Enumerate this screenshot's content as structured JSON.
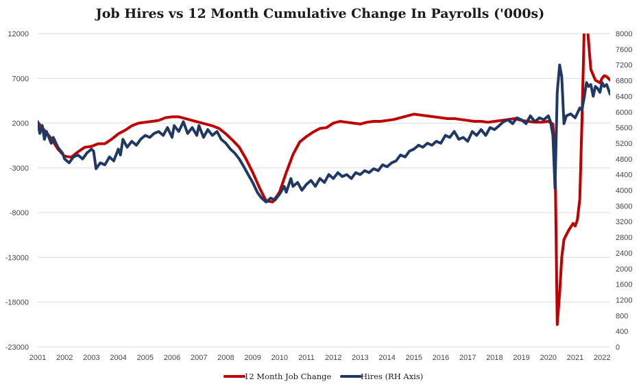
{
  "chart_data": {
    "type": "line",
    "title": "Job Hires vs 12 Month Cumulative Change In Payrolls ('000s)",
    "xlabel": "",
    "ylabel": "",
    "x_ticks": [
      "2001",
      "2002",
      "2003",
      "2004",
      "2005",
      "2006",
      "2007",
      "2008",
      "2009",
      "2010",
      "2011",
      "2012",
      "2013",
      "2014",
      "2015",
      "2016",
      "2017",
      "2018",
      "2019",
      "2020",
      "2021",
      "2022"
    ],
    "xlim": [
      2001.0,
      2022.3
    ],
    "left_axis": {
      "ticks": [
        "12000",
        "7000",
        "2000",
        "-3000",
        "-8000",
        "-13000",
        "-18000",
        "-23000"
      ],
      "ylim": [
        -23000,
        12000
      ]
    },
    "right_axis": {
      "ticks": [
        "8000",
        "7600",
        "7200",
        "6800",
        "6400",
        "6000",
        "5600",
        "5200",
        "4800",
        "4400",
        "4000",
        "3600",
        "3200",
        "2800",
        "2400",
        "2000",
        "1600",
        "1200",
        "800",
        "400",
        "0"
      ],
      "ylim": [
        0,
        8000
      ]
    },
    "grid": true,
    "legend_position": "bottom",
    "series": [
      {
        "name": "12 Month Job Change",
        "axis": "left",
        "color": "#c00000",
        "points": [
          [
            2001.0,
            2100
          ],
          [
            2001.25,
            1200
          ],
          [
            2001.5,
            300
          ],
          [
            2001.75,
            -900
          ],
          [
            2002.0,
            -1700
          ],
          [
            2002.25,
            -1800
          ],
          [
            2002.5,
            -1200
          ],
          [
            2002.75,
            -700
          ],
          [
            2003.0,
            -600
          ],
          [
            2003.25,
            -300
          ],
          [
            2003.5,
            -300
          ],
          [
            2003.75,
            200
          ],
          [
            2004.0,
            800
          ],
          [
            2004.25,
            1200
          ],
          [
            2004.5,
            1700
          ],
          [
            2004.75,
            2000
          ],
          [
            2005.0,
            2100
          ],
          [
            2005.25,
            2200
          ],
          [
            2005.5,
            2300
          ],
          [
            2005.75,
            2600
          ],
          [
            2006.0,
            2700
          ],
          [
            2006.25,
            2700
          ],
          [
            2006.5,
            2500
          ],
          [
            2006.75,
            2300
          ],
          [
            2007.0,
            2100
          ],
          [
            2007.5,
            1700
          ],
          [
            2007.75,
            1400
          ],
          [
            2008.0,
            800
          ],
          [
            2008.25,
            100
          ],
          [
            2008.5,
            -700
          ],
          [
            2008.75,
            -2000
          ],
          [
            2009.0,
            -3500
          ],
          [
            2009.25,
            -5200
          ],
          [
            2009.5,
            -6700
          ],
          [
            2009.75,
            -6800
          ],
          [
            2010.0,
            -5700
          ],
          [
            2010.25,
            -3500
          ],
          [
            2010.5,
            -1500
          ],
          [
            2010.75,
            -100
          ],
          [
            2011.0,
            500
          ],
          [
            2011.25,
            1000
          ],
          [
            2011.5,
            1400
          ],
          [
            2011.75,
            1500
          ],
          [
            2012.0,
            2000
          ],
          [
            2012.25,
            2200
          ],
          [
            2012.5,
            2100
          ],
          [
            2012.75,
            2000
          ],
          [
            2013.0,
            1900
          ],
          [
            2013.25,
            2100
          ],
          [
            2013.5,
            2200
          ],
          [
            2013.75,
            2200
          ],
          [
            2014.0,
            2300
          ],
          [
            2014.25,
            2400
          ],
          [
            2014.5,
            2600
          ],
          [
            2014.75,
            2800
          ],
          [
            2015.0,
            3000
          ],
          [
            2015.25,
            2900
          ],
          [
            2015.5,
            2800
          ],
          [
            2015.75,
            2700
          ],
          [
            2016.0,
            2600
          ],
          [
            2016.25,
            2500
          ],
          [
            2016.5,
            2500
          ],
          [
            2016.75,
            2400
          ],
          [
            2017.0,
            2300
          ],
          [
            2017.25,
            2200
          ],
          [
            2017.5,
            2200
          ],
          [
            2017.75,
            2100
          ],
          [
            2018.0,
            2200
          ],
          [
            2018.25,
            2300
          ],
          [
            2018.5,
            2400
          ],
          [
            2018.75,
            2500
          ],
          [
            2019.0,
            2300
          ],
          [
            2019.25,
            2200
          ],
          [
            2019.5,
            2100
          ],
          [
            2019.75,
            2100
          ],
          [
            2020.0,
            2200
          ],
          [
            2020.17,
            1900
          ],
          [
            2020.25,
            -1500
          ],
          [
            2020.33,
            -20500
          ],
          [
            2020.42,
            -17000
          ],
          [
            2020.5,
            -13000
          ],
          [
            2020.58,
            -11000
          ],
          [
            2020.75,
            -10000
          ],
          [
            2020.92,
            -9200
          ],
          [
            2021.0,
            -9500
          ],
          [
            2021.08,
            -8800
          ],
          [
            2021.17,
            -6500
          ],
          [
            2021.25,
            2000
          ],
          [
            2021.33,
            12000
          ],
          [
            2021.42,
            14000
          ],
          [
            2021.5,
            11000
          ],
          [
            2021.58,
            8000
          ],
          [
            2021.75,
            6800
          ],
          [
            2021.92,
            6500
          ],
          [
            2022.0,
            7000
          ],
          [
            2022.08,
            7300
          ],
          [
            2022.17,
            7200
          ],
          [
            2022.3,
            6800
          ]
        ]
      },
      {
        "name": "Hires (RH Axis)",
        "axis": "right",
        "color": "#1f3864",
        "points": [
          [
            2001.0,
            5750
          ],
          [
            2001.08,
            5450
          ],
          [
            2001.17,
            5650
          ],
          [
            2001.25,
            5300
          ],
          [
            2001.33,
            5500
          ],
          [
            2001.5,
            5200
          ],
          [
            2001.58,
            5350
          ],
          [
            2001.75,
            5100
          ],
          [
            2001.92,
            4950
          ],
          [
            2002.0,
            4800
          ],
          [
            2002.17,
            4700
          ],
          [
            2002.33,
            4850
          ],
          [
            2002.5,
            4900
          ],
          [
            2002.67,
            4800
          ],
          [
            2002.83,
            4950
          ],
          [
            2003.0,
            5050
          ],
          [
            2003.08,
            5000
          ],
          [
            2003.17,
            4550
          ],
          [
            2003.33,
            4700
          ],
          [
            2003.5,
            4650
          ],
          [
            2003.67,
            4850
          ],
          [
            2003.83,
            4750
          ],
          [
            2004.0,
            5050
          ],
          [
            2004.08,
            4900
          ],
          [
            2004.17,
            5300
          ],
          [
            2004.33,
            5100
          ],
          [
            2004.5,
            5250
          ],
          [
            2004.67,
            5150
          ],
          [
            2004.83,
            5300
          ],
          [
            2005.0,
            5400
          ],
          [
            2005.17,
            5350
          ],
          [
            2005.33,
            5450
          ],
          [
            2005.5,
            5500
          ],
          [
            2005.67,
            5400
          ],
          [
            2005.83,
            5600
          ],
          [
            2006.0,
            5350
          ],
          [
            2006.08,
            5650
          ],
          [
            2006.25,
            5500
          ],
          [
            2006.42,
            5750
          ],
          [
            2006.58,
            5450
          ],
          [
            2006.75,
            5600
          ],
          [
            2006.92,
            5400
          ],
          [
            2007.0,
            5650
          ],
          [
            2007.17,
            5350
          ],
          [
            2007.33,
            5550
          ],
          [
            2007.5,
            5400
          ],
          [
            2007.67,
            5500
          ],
          [
            2007.83,
            5300
          ],
          [
            2008.0,
            5200
          ],
          [
            2008.17,
            5050
          ],
          [
            2008.33,
            4950
          ],
          [
            2008.5,
            4800
          ],
          [
            2008.67,
            4600
          ],
          [
            2008.83,
            4400
          ],
          [
            2009.0,
            4200
          ],
          [
            2009.17,
            3950
          ],
          [
            2009.33,
            3800
          ],
          [
            2009.5,
            3700
          ],
          [
            2009.67,
            3800
          ],
          [
            2009.83,
            3750
          ],
          [
            2010.0,
            3900
          ],
          [
            2010.17,
            4100
          ],
          [
            2010.25,
            3950
          ],
          [
            2010.42,
            4300
          ],
          [
            2010.5,
            4100
          ],
          [
            2010.67,
            4200
          ],
          [
            2010.83,
            4000
          ],
          [
            2011.0,
            4150
          ],
          [
            2011.17,
            4250
          ],
          [
            2011.33,
            4100
          ],
          [
            2011.5,
            4300
          ],
          [
            2011.67,
            4200
          ],
          [
            2011.83,
            4400
          ],
          [
            2012.0,
            4300
          ],
          [
            2012.17,
            4450
          ],
          [
            2012.33,
            4350
          ],
          [
            2012.5,
            4400
          ],
          [
            2012.67,
            4300
          ],
          [
            2012.83,
            4450
          ],
          [
            2013.0,
            4400
          ],
          [
            2013.17,
            4500
          ],
          [
            2013.33,
            4450
          ],
          [
            2013.5,
            4550
          ],
          [
            2013.67,
            4500
          ],
          [
            2013.83,
            4650
          ],
          [
            2014.0,
            4600
          ],
          [
            2014.17,
            4700
          ],
          [
            2014.33,
            4750
          ],
          [
            2014.5,
            4900
          ],
          [
            2014.67,
            4850
          ],
          [
            2014.83,
            5000
          ],
          [
            2015.0,
            5050
          ],
          [
            2015.17,
            5150
          ],
          [
            2015.33,
            5100
          ],
          [
            2015.5,
            5200
          ],
          [
            2015.67,
            5150
          ],
          [
            2015.83,
            5250
          ],
          [
            2016.0,
            5200
          ],
          [
            2016.17,
            5400
          ],
          [
            2016.33,
            5350
          ],
          [
            2016.5,
            5500
          ],
          [
            2016.67,
            5300
          ],
          [
            2016.83,
            5350
          ],
          [
            2017.0,
            5250
          ],
          [
            2017.17,
            5500
          ],
          [
            2017.33,
            5400
          ],
          [
            2017.5,
            5550
          ],
          [
            2017.67,
            5400
          ],
          [
            2017.83,
            5600
          ],
          [
            2018.0,
            5550
          ],
          [
            2018.17,
            5650
          ],
          [
            2018.33,
            5750
          ],
          [
            2018.5,
            5800
          ],
          [
            2018.67,
            5700
          ],
          [
            2018.83,
            5850
          ],
          [
            2019.0,
            5800
          ],
          [
            2019.17,
            5700
          ],
          [
            2019.33,
            5900
          ],
          [
            2019.5,
            5750
          ],
          [
            2019.67,
            5850
          ],
          [
            2019.83,
            5800
          ],
          [
            2020.0,
            5900
          ],
          [
            2020.08,
            5750
          ],
          [
            2020.17,
            5400
          ],
          [
            2020.25,
            4050
          ],
          [
            2020.33,
            6500
          ],
          [
            2020.42,
            7200
          ],
          [
            2020.5,
            6900
          ],
          [
            2020.58,
            5700
          ],
          [
            2020.67,
            5900
          ],
          [
            2020.83,
            5950
          ],
          [
            2021.0,
            5850
          ],
          [
            2021.17,
            6100
          ],
          [
            2021.25,
            6050
          ],
          [
            2021.33,
            6350
          ],
          [
            2021.42,
            6750
          ],
          [
            2021.5,
            6650
          ],
          [
            2021.58,
            6700
          ],
          [
            2021.67,
            6400
          ],
          [
            2021.75,
            6650
          ],
          [
            2021.83,
            6600
          ],
          [
            2021.92,
            6500
          ],
          [
            2022.0,
            6750
          ],
          [
            2022.08,
            6650
          ],
          [
            2022.17,
            6700
          ],
          [
            2022.3,
            6450
          ]
        ]
      }
    ]
  }
}
